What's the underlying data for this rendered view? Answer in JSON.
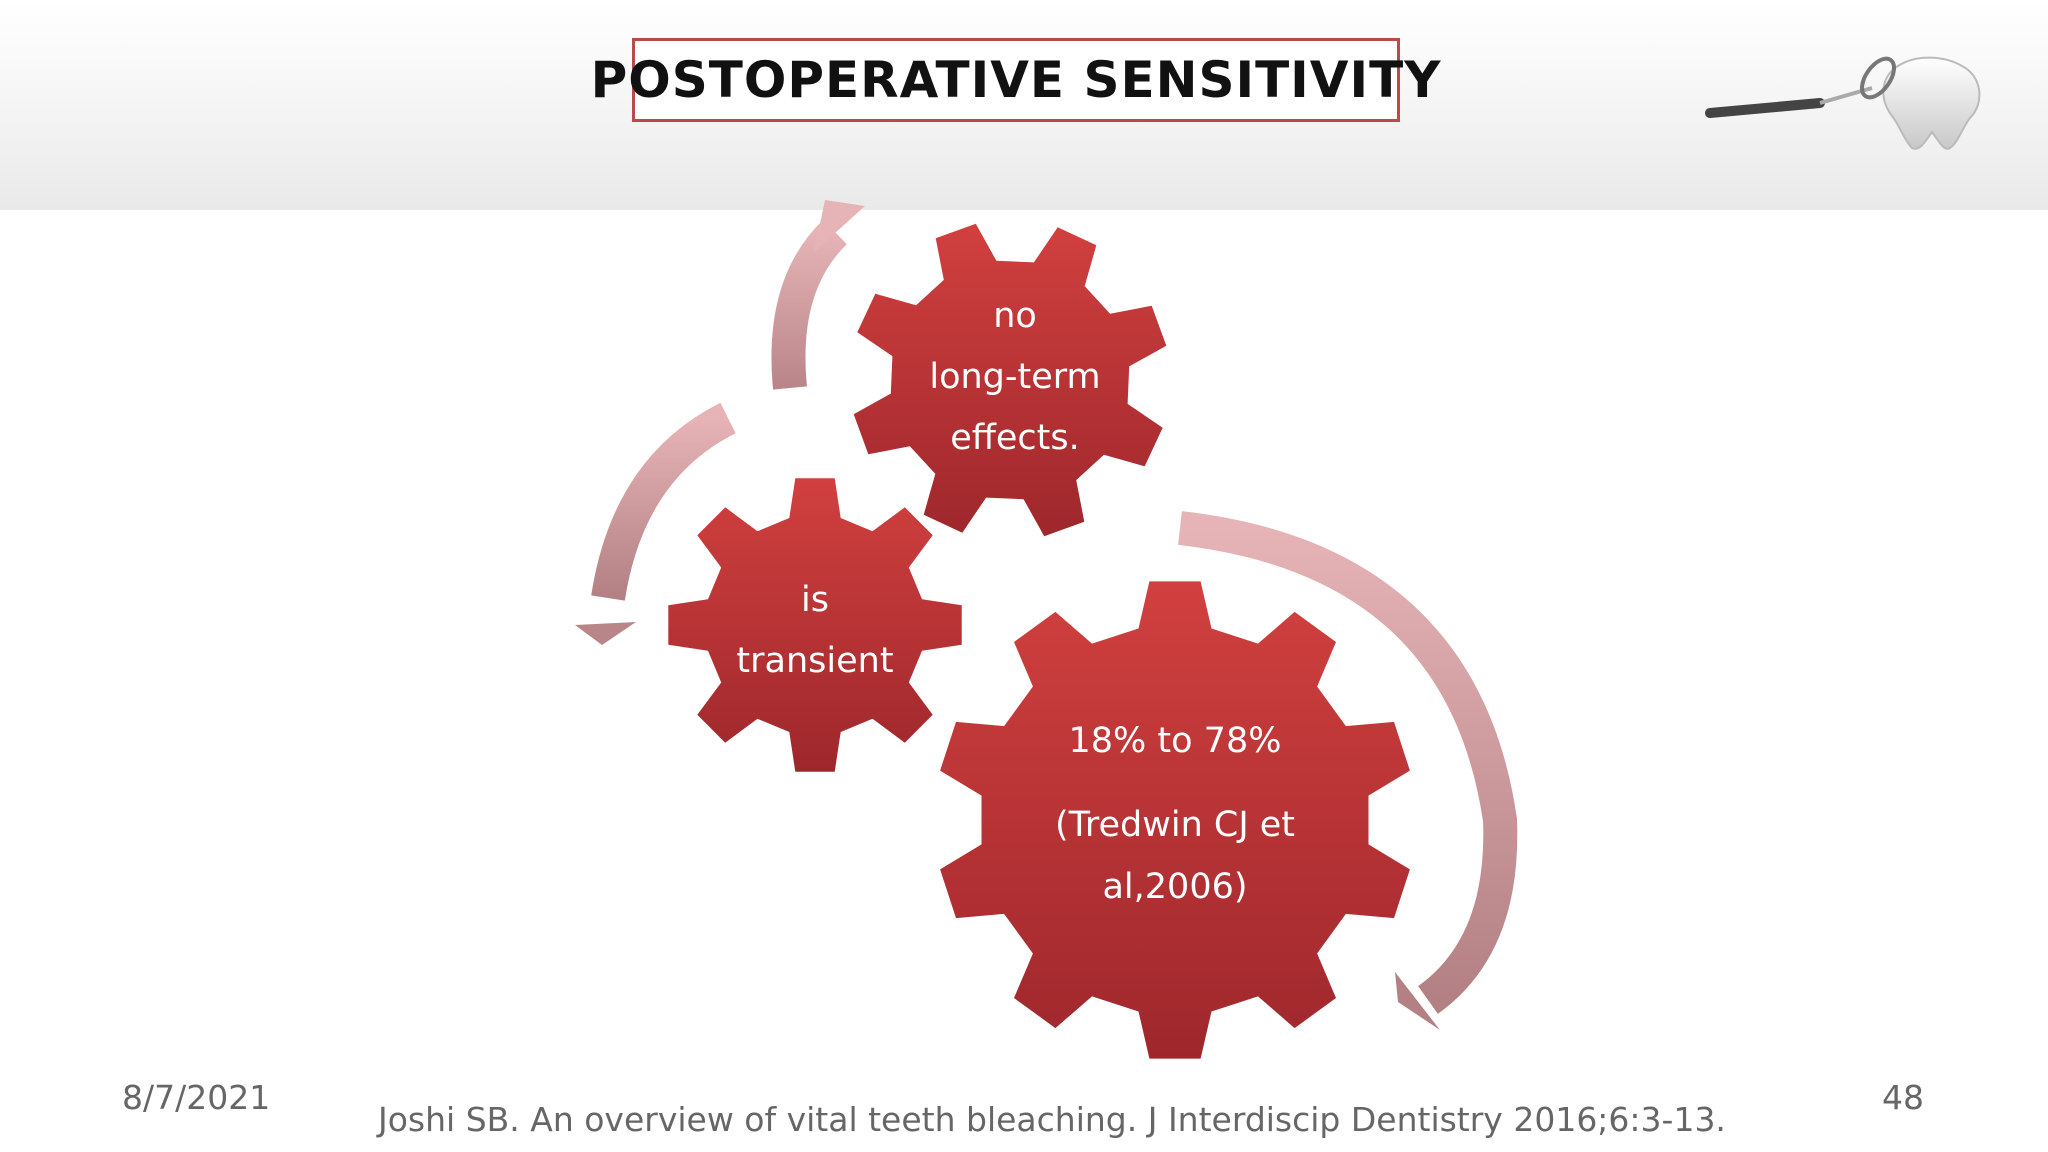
{
  "slide": {
    "title": "POSTOPERATIVE SENSITIVITY",
    "date": "8/7/2021",
    "page_number": "48",
    "citation": "Joshi SB. An overview of vital teeth bleaching. J Interdiscip Dentistry 2016;6:3-13."
  },
  "gears": [
    {
      "line1": "no",
      "line2": "long-term",
      "line3": "effects."
    },
    {
      "line1": "is",
      "line2": "transient"
    },
    {
      "line1": "18% to 78%",
      "line2": "(Tredwin CJ et",
      "line3": "al,2006)"
    }
  ],
  "colors": {
    "gear": "#c0343a",
    "gear_dark": "#9c262b",
    "arrow": "#d49a9c",
    "title_border": "#b84a4a",
    "footer_text": "#666666"
  },
  "icons": [
    "dental-mirror-tooth-icon"
  ]
}
